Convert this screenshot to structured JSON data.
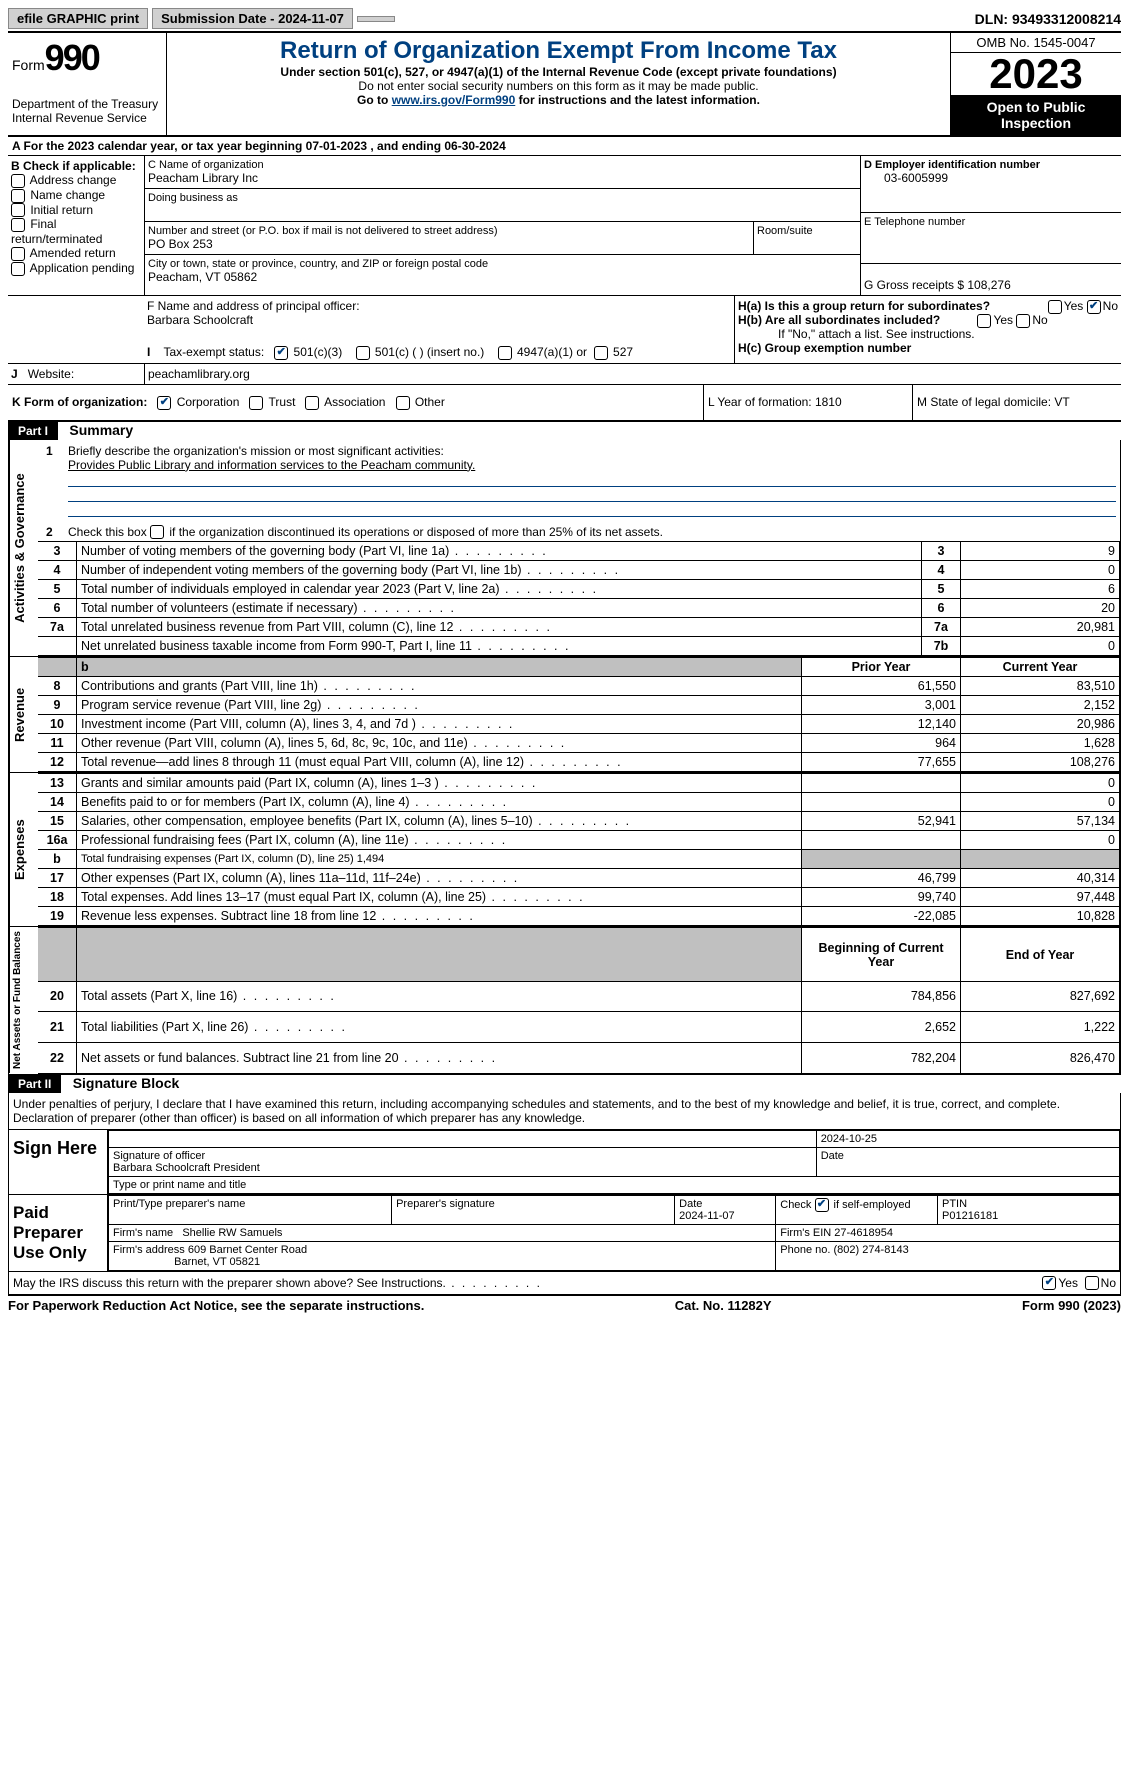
{
  "topbar": {
    "efile": "efile GRAPHIC print",
    "submission": "Submission Date - 2024-11-07",
    "dln": "DLN: 93493312008214"
  },
  "header": {
    "form_label": "Form",
    "form_number": "990",
    "title": "Return of Organization Exempt From Income Tax",
    "subtitle1": "Under section 501(c), 527, or 4947(a)(1) of the Internal Revenue Code (except private foundations)",
    "subtitle2": "Do not enter social security numbers on this form as it may be made public.",
    "subtitle3_prefix": "Go to ",
    "subtitle3_link": "www.irs.gov/Form990",
    "subtitle3_suffix": " for instructions and the latest information.",
    "dept": "Department of the Treasury Internal Revenue Service",
    "omb": "OMB No. 1545-0047",
    "year": "2023",
    "open": "Open to Public Inspection"
  },
  "a_line": "A For the 2023 calendar year, or tax year beginning 07-01-2023   , and ending 06-30-2024",
  "b": {
    "label": "B Check if applicable:",
    "items": [
      "Address change",
      "Name change",
      "Initial return",
      "Final return/terminated",
      "Amended return",
      "Application pending"
    ]
  },
  "c": {
    "name_label": "C Name of organization",
    "name": "Peacham Library Inc",
    "dba_label": "Doing business as",
    "street_label": "Number and street (or P.O. box if mail is not delivered to street address)",
    "street": "PO Box 253",
    "room_label": "Room/suite",
    "city_label": "City or town, state or province, country, and ZIP or foreign postal code",
    "city": "Peacham, VT  05862"
  },
  "d": {
    "label": "D Employer identification number",
    "value": "03-6005999"
  },
  "e": {
    "label": "E Telephone number"
  },
  "g": {
    "label": "G Gross receipts $ 108,276"
  },
  "f": {
    "label": "F  Name and address of principal officer:",
    "value": "Barbara Schoolcraft"
  },
  "h": {
    "a_label": "H(a)  Is this a group return for subordinates?",
    "b_label": "H(b)  Are all subordinates included?",
    "note": "If \"No,\" attach a list. See instructions.",
    "c_label": "H(c)  Group exemption number"
  },
  "i": {
    "label": "Tax-exempt status:",
    "opt1": "501(c)(3)",
    "opt2": "501(c) (  ) (insert no.)",
    "opt3": "4947(a)(1) or",
    "opt4": "527"
  },
  "j": {
    "label": "Website:",
    "value": "peachamlibrary.org"
  },
  "k": {
    "label": "K Form of organization:",
    "opts": [
      "Corporation",
      "Trust",
      "Association",
      "Other"
    ]
  },
  "l": {
    "label": "L Year of formation: 1810"
  },
  "m": {
    "label": "M State of legal domicile: VT"
  },
  "part1": {
    "header": "Part I",
    "title": "Summary",
    "line1_label": "Briefly describe the organization's mission or most significant activities:",
    "line1_value": "Provides Public Library and information services to the Peacham community.",
    "line2": "Check this box      if the organization discontinued its operations or disposed of more than 25% of its net assets.",
    "lines_gov": [
      {
        "n": "3",
        "t": "Number of voting members of the governing body (Part VI, line 1a)",
        "box": "3",
        "v": "9"
      },
      {
        "n": "4",
        "t": "Number of independent voting members of the governing body (Part VI, line 1b)",
        "box": "4",
        "v": "0"
      },
      {
        "n": "5",
        "t": "Total number of individuals employed in calendar year 2023 (Part V, line 2a)",
        "box": "5",
        "v": "6"
      },
      {
        "n": "6",
        "t": "Total number of volunteers (estimate if necessary)",
        "box": "6",
        "v": "20"
      },
      {
        "n": "7a",
        "t": "Total unrelated business revenue from Part VIII, column (C), line 12",
        "box": "7a",
        "v": "20,981"
      },
      {
        "n": "",
        "t": "Net unrelated business taxable income from Form 990-T, Part I, line 11",
        "box": "7b",
        "v": "0"
      }
    ],
    "col_prior": "Prior Year",
    "col_current": "Current Year",
    "revenue": [
      {
        "n": "8",
        "t": "Contributions and grants (Part VIII, line 1h)",
        "p": "61,550",
        "c": "83,510"
      },
      {
        "n": "9",
        "t": "Program service revenue (Part VIII, line 2g)",
        "p": "3,001",
        "c": "2,152"
      },
      {
        "n": "10",
        "t": "Investment income (Part VIII, column (A), lines 3, 4, and 7d )",
        "p": "12,140",
        "c": "20,986"
      },
      {
        "n": "11",
        "t": "Other revenue (Part VIII, column (A), lines 5, 6d, 8c, 9c, 10c, and 11e)",
        "p": "964",
        "c": "1,628"
      },
      {
        "n": "12",
        "t": "Total revenue—add lines 8 through 11 (must equal Part VIII, column (A), line 12)",
        "p": "77,655",
        "c": "108,276"
      }
    ],
    "expenses": [
      {
        "n": "13",
        "t": "Grants and similar amounts paid (Part IX, column (A), lines 1–3 )",
        "p": "",
        "c": "0"
      },
      {
        "n": "14",
        "t": "Benefits paid to or for members (Part IX, column (A), line 4)",
        "p": "",
        "c": "0"
      },
      {
        "n": "15",
        "t": "Salaries, other compensation, employee benefits (Part IX, column (A), lines 5–10)",
        "p": "52,941",
        "c": "57,134"
      },
      {
        "n": "16a",
        "t": "Professional fundraising fees (Part IX, column (A), line 11e)",
        "p": "",
        "c": "0"
      },
      {
        "n": "b",
        "t": "Total fundraising expenses (Part IX, column (D), line 25) 1,494",
        "grey": true
      },
      {
        "n": "17",
        "t": "Other expenses (Part IX, column (A), lines 11a–11d, 11f–24e)",
        "p": "46,799",
        "c": "40,314"
      },
      {
        "n": "18",
        "t": "Total expenses. Add lines 13–17 (must equal Part IX, column (A), line 25)",
        "p": "99,740",
        "c": "97,448"
      },
      {
        "n": "19",
        "t": "Revenue less expenses. Subtract line 18 from line 12",
        "p": "-22,085",
        "c": "10,828"
      }
    ],
    "col_begin": "Beginning of Current Year",
    "col_end": "End of Year",
    "netassets": [
      {
        "n": "20",
        "t": "Total assets (Part X, line 16)",
        "p": "784,856",
        "c": "827,692"
      },
      {
        "n": "21",
        "t": "Total liabilities (Part X, line 26)",
        "p": "2,652",
        "c": "1,222"
      },
      {
        "n": "22",
        "t": "Net assets or fund balances. Subtract line 21 from line 20",
        "p": "782,204",
        "c": "826,470"
      }
    ]
  },
  "part2": {
    "header": "Part II",
    "title": "Signature Block",
    "declaration": "Under penalties of perjury, I declare that I have examined this return, including accompanying schedules and statements, and to the best of my knowledge and belief, it is true, correct, and complete. Declaration of preparer (other than officer) is based on all information of which preparer has any knowledge."
  },
  "sign": {
    "label": "Sign Here",
    "date": "2024-10-25",
    "sig_label": "Signature of officer",
    "date_label": "Date",
    "officer": "Barbara Schoolcraft  President",
    "type_label": "Type or print name and title"
  },
  "preparer": {
    "label": "Paid Preparer Use Only",
    "name_label": "Print/Type preparer's name",
    "sig_label": "Preparer's signature",
    "date_label": "Date",
    "date": "2024-11-07",
    "check_label": "Check         if self-employed",
    "ptin_label": "PTIN",
    "ptin": "P01216181",
    "firm_name_label": "Firm's name",
    "firm_name": "Shellie RW Samuels",
    "firm_ein_label": "Firm's EIN",
    "firm_ein": "27-4618954",
    "firm_addr_label": "Firm's address",
    "firm_addr1": "609 Barnet Center Road",
    "firm_addr2": "Barnet, VT  05821",
    "phone_label": "Phone no.",
    "phone": "(802) 274-8143"
  },
  "discuss": "May the IRS discuss this return with the preparer shown above? See Instructions.",
  "footer": {
    "left": "For Paperwork Reduction Act Notice, see the separate instructions.",
    "mid": "Cat. No. 11282Y",
    "right": "Form 990 (2023)"
  }
}
